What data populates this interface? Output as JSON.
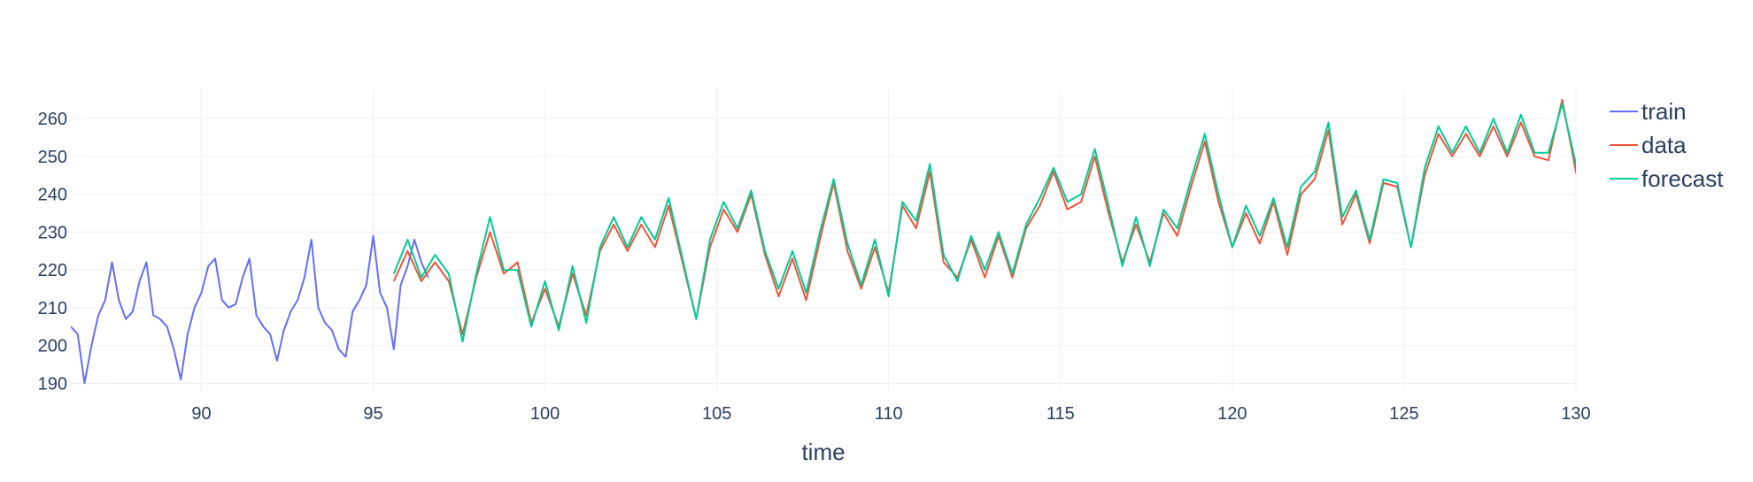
{
  "chart_data": {
    "type": "line",
    "title": "",
    "xlabel": "time",
    "ylabel": "",
    "xlim": [
      86.2,
      130
    ],
    "ylim": [
      188,
      268
    ],
    "xticks": [
      90,
      95,
      100,
      105,
      110,
      115,
      120,
      125,
      130
    ],
    "yticks": [
      190,
      200,
      210,
      220,
      230,
      240,
      250,
      260
    ],
    "grid": true,
    "legend_position": "top-right",
    "series": [
      {
        "name": "train",
        "color": "#636efa",
        "points": [
          [
            86.2,
            205
          ],
          [
            86.4,
            203
          ],
          [
            86.6,
            190
          ],
          [
            86.8,
            200
          ],
          [
            87.0,
            208
          ],
          [
            87.2,
            212
          ],
          [
            87.4,
            222
          ],
          [
            87.6,
            212
          ],
          [
            87.8,
            207
          ],
          [
            88.0,
            209
          ],
          [
            88.2,
            217
          ],
          [
            88.4,
            222
          ],
          [
            88.6,
            208
          ],
          [
            88.8,
            207
          ],
          [
            89.0,
            205
          ],
          [
            89.2,
            199
          ],
          [
            89.4,
            191
          ],
          [
            89.6,
            203
          ],
          [
            89.8,
            210
          ],
          [
            90.0,
            214
          ],
          [
            90.2,
            221
          ],
          [
            90.4,
            223
          ],
          [
            90.6,
            212
          ],
          [
            90.8,
            210
          ],
          [
            91.0,
            211
          ],
          [
            91.2,
            218
          ],
          [
            91.4,
            223
          ],
          [
            91.6,
            208
          ],
          [
            91.8,
            205
          ],
          [
            92.0,
            203
          ],
          [
            92.2,
            196
          ],
          [
            92.4,
            204
          ],
          [
            92.6,
            209
          ],
          [
            92.8,
            212
          ],
          [
            93.0,
            218
          ],
          [
            93.2,
            228
          ],
          [
            93.4,
            210
          ],
          [
            93.6,
            206
          ],
          [
            93.8,
            204
          ],
          [
            94.0,
            199
          ],
          [
            94.2,
            197
          ],
          [
            94.4,
            209
          ],
          [
            94.6,
            212
          ],
          [
            94.8,
            216
          ],
          [
            95.0,
            229
          ],
          [
            95.2,
            214
          ],
          [
            95.4,
            210
          ],
          [
            95.6,
            199
          ],
          [
            95.8,
            216
          ],
          [
            96.0,
            221
          ],
          [
            96.2,
            228
          ],
          [
            96.4,
            222
          ],
          [
            96.6,
            218
          ]
        ],
        "values_note": ""
      },
      {
        "name": "data",
        "color": "#ef553b",
        "points": [
          [
            95.6,
            217
          ],
          [
            96.0,
            225
          ],
          [
            96.4,
            217
          ],
          [
            96.8,
            222
          ],
          [
            97.2,
            217
          ],
          [
            97.6,
            203
          ],
          [
            98.0,
            218
          ],
          [
            98.4,
            230
          ],
          [
            98.8,
            219
          ],
          [
            99.2,
            222
          ],
          [
            99.6,
            206
          ],
          [
            100.0,
            215
          ],
          [
            100.4,
            205
          ],
          [
            100.8,
            219
          ],
          [
            101.2,
            208
          ],
          [
            101.6,
            225
          ],
          [
            102.0,
            232
          ],
          [
            102.4,
            225
          ],
          [
            102.8,
            232
          ],
          [
            103.2,
            226
          ],
          [
            103.6,
            237
          ],
          [
            104.0,
            222
          ],
          [
            104.4,
            207
          ],
          [
            104.8,
            226
          ],
          [
            105.2,
            236
          ],
          [
            105.6,
            230
          ],
          [
            106.0,
            240
          ],
          [
            106.4,
            224
          ],
          [
            106.8,
            213
          ],
          [
            107.2,
            223
          ],
          [
            107.6,
            212
          ],
          [
            108.0,
            228
          ],
          [
            108.4,
            243
          ],
          [
            108.8,
            225
          ],
          [
            109.2,
            215
          ],
          [
            109.6,
            226
          ],
          [
            110.0,
            214
          ],
          [
            110.4,
            237
          ],
          [
            110.8,
            231
          ],
          [
            111.2,
            246
          ],
          [
            111.6,
            222
          ],
          [
            112.0,
            218
          ],
          [
            112.4,
            228
          ],
          [
            112.8,
            218
          ],
          [
            113.2,
            229
          ],
          [
            113.6,
            218
          ],
          [
            114.0,
            231
          ],
          [
            114.4,
            237
          ],
          [
            114.8,
            246
          ],
          [
            115.2,
            236
          ],
          [
            115.6,
            238
          ],
          [
            116.0,
            250
          ],
          [
            116.4,
            235
          ],
          [
            116.8,
            222
          ],
          [
            117.2,
            232
          ],
          [
            117.6,
            222
          ],
          [
            118.0,
            235
          ],
          [
            118.4,
            229
          ],
          [
            118.8,
            242
          ],
          [
            119.2,
            254
          ],
          [
            119.6,
            238
          ],
          [
            120.0,
            226
          ],
          [
            120.4,
            235
          ],
          [
            120.8,
            227
          ],
          [
            121.2,
            238
          ],
          [
            121.6,
            224
          ],
          [
            122.0,
            240
          ],
          [
            122.4,
            244
          ],
          [
            122.8,
            257
          ],
          [
            123.2,
            232
          ],
          [
            123.6,
            240
          ],
          [
            124.0,
            227
          ],
          [
            124.4,
            243
          ],
          [
            124.8,
            242
          ],
          [
            125.2,
            226
          ],
          [
            125.6,
            245
          ],
          [
            126.0,
            256
          ],
          [
            126.4,
            250
          ],
          [
            126.8,
            256
          ],
          [
            127.2,
            250
          ],
          [
            127.6,
            258
          ],
          [
            128.0,
            250
          ],
          [
            128.4,
            259
          ],
          [
            128.8,
            250
          ],
          [
            129.2,
            249
          ],
          [
            129.6,
            265
          ],
          [
            130.0,
            246
          ],
          [
            130.4,
            235
          ]
        ]
      },
      {
        "name": "forecast",
        "color": "#00cc96",
        "points": [
          [
            95.6,
            219
          ],
          [
            96.0,
            228
          ],
          [
            96.4,
            218
          ],
          [
            96.8,
            224
          ],
          [
            97.2,
            219
          ],
          [
            97.6,
            201
          ],
          [
            98.0,
            219
          ],
          [
            98.4,
            234
          ],
          [
            98.8,
            220
          ],
          [
            99.2,
            220
          ],
          [
            99.6,
            205
          ],
          [
            100.0,
            217
          ],
          [
            100.4,
            204
          ],
          [
            100.8,
            221
          ],
          [
            101.2,
            206
          ],
          [
            101.6,
            226
          ],
          [
            102.0,
            234
          ],
          [
            102.4,
            226
          ],
          [
            102.8,
            234
          ],
          [
            103.2,
            228
          ],
          [
            103.6,
            239
          ],
          [
            104.0,
            223
          ],
          [
            104.4,
            207
          ],
          [
            104.8,
            228
          ],
          [
            105.2,
            238
          ],
          [
            105.6,
            231
          ],
          [
            106.0,
            241
          ],
          [
            106.4,
            225
          ],
          [
            106.8,
            215
          ],
          [
            107.2,
            225
          ],
          [
            107.6,
            214
          ],
          [
            108.0,
            230
          ],
          [
            108.4,
            244
          ],
          [
            108.8,
            227
          ],
          [
            109.2,
            216
          ],
          [
            109.6,
            228
          ],
          [
            110.0,
            213
          ],
          [
            110.4,
            238
          ],
          [
            110.8,
            233
          ],
          [
            111.2,
            248
          ],
          [
            111.6,
            224
          ],
          [
            112.0,
            217
          ],
          [
            112.4,
            229
          ],
          [
            112.8,
            220
          ],
          [
            113.2,
            230
          ],
          [
            113.6,
            219
          ],
          [
            114.0,
            232
          ],
          [
            114.4,
            239
          ],
          [
            114.8,
            247
          ],
          [
            115.2,
            238
          ],
          [
            115.6,
            240
          ],
          [
            116.0,
            252
          ],
          [
            116.4,
            237
          ],
          [
            116.8,
            221
          ],
          [
            117.2,
            234
          ],
          [
            117.6,
            221
          ],
          [
            118.0,
            236
          ],
          [
            118.4,
            231
          ],
          [
            118.8,
            244
          ],
          [
            119.2,
            256
          ],
          [
            119.6,
            240
          ],
          [
            120.0,
            226
          ],
          [
            120.4,
            237
          ],
          [
            120.8,
            229
          ],
          [
            121.2,
            239
          ],
          [
            121.6,
            226
          ],
          [
            122.0,
            242
          ],
          [
            122.4,
            246
          ],
          [
            122.8,
            259
          ],
          [
            123.2,
            234
          ],
          [
            123.6,
            241
          ],
          [
            124.0,
            228
          ],
          [
            124.4,
            244
          ],
          [
            124.8,
            243
          ],
          [
            125.2,
            226
          ],
          [
            125.6,
            247
          ],
          [
            126.0,
            258
          ],
          [
            126.4,
            251
          ],
          [
            126.8,
            258
          ],
          [
            127.2,
            251
          ],
          [
            127.6,
            260
          ],
          [
            128.0,
            251
          ],
          [
            128.4,
            261
          ],
          [
            128.8,
            251
          ],
          [
            129.2,
            251
          ],
          [
            129.6,
            264
          ],
          [
            130.0,
            248
          ],
          [
            130.4,
            236
          ]
        ]
      }
    ]
  }
}
